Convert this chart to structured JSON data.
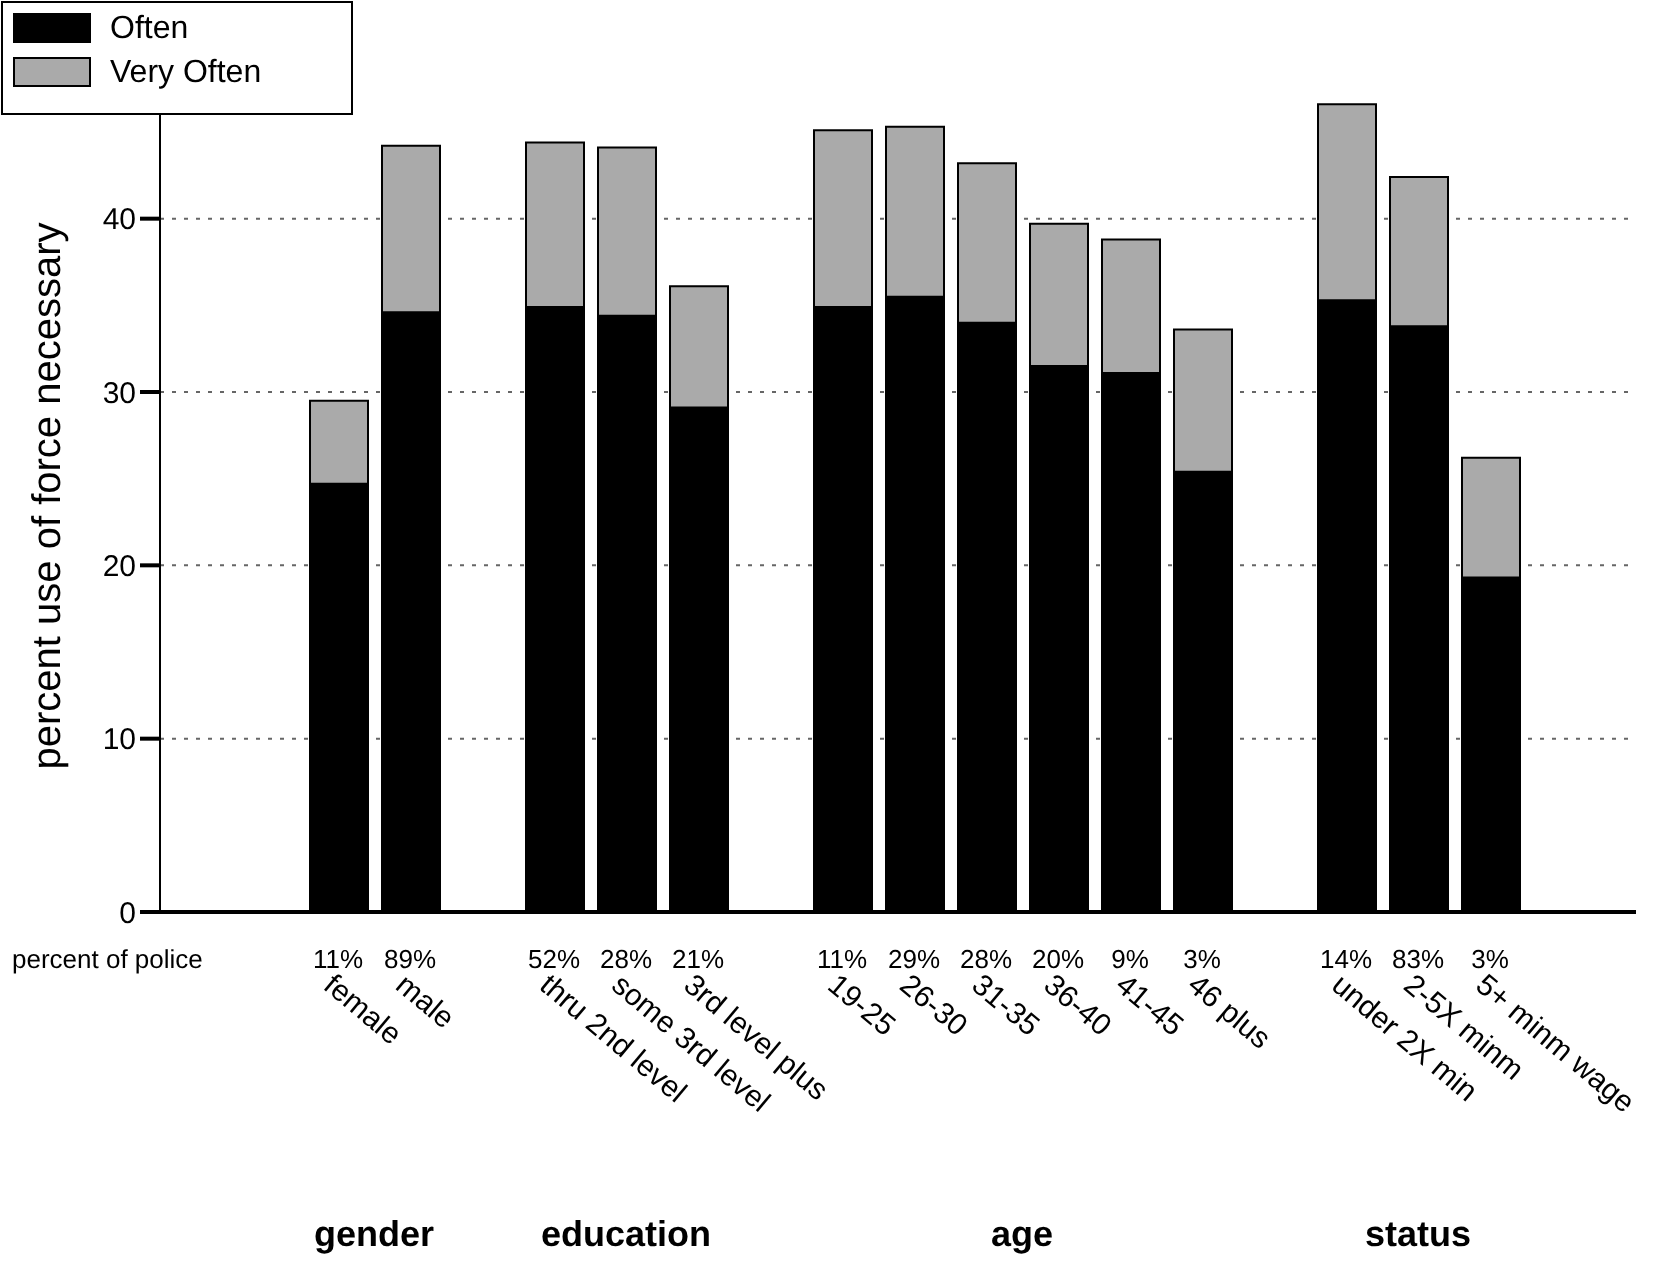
{
  "chart_data": {
    "type": "bar",
    "stacked": true,
    "categories": [
      "female",
      "male",
      null,
      "thru 2nd level",
      "some 3rd level",
      "3rd level plus",
      null,
      "19-25",
      "26-30",
      "31-35",
      "36-40",
      "41-45",
      "46 plus",
      null,
      "under 2X min",
      "2-5X minm",
      "5+ minm wage"
    ],
    "series": [
      {
        "name": "Often",
        "color": "#000000",
        "values": [
          24.7,
          34.6,
          null,
          34.9,
          34.4,
          29.1,
          null,
          34.9,
          35.5,
          34.0,
          31.5,
          31.1,
          25.4,
          null,
          35.3,
          33.8,
          19.3
        ]
      },
      {
        "name": "Very Often",
        "color": "#aaaaaa",
        "values": [
          4.8,
          9.6,
          null,
          9.5,
          9.7,
          7.0,
          null,
          10.2,
          9.8,
          9.2,
          8.2,
          7.7,
          8.2,
          null,
          11.3,
          8.6,
          6.9
        ]
      }
    ],
    "ylabel": "percent use of force necessary",
    "ylim": [
      0,
      48
    ],
    "yticks": [
      0,
      10,
      20,
      30,
      40
    ],
    "grid": "y",
    "legend": "top left",
    "annotations": [
      "percent of police",
      "11%",
      "89%",
      "52%",
      "28%",
      "21%",
      "11%",
      "29%",
      "28%",
      "20%",
      "9%",
      "3%",
      "14%",
      "83%",
      "3%",
      "gender",
      "education",
      "age",
      "status"
    ]
  }
}
